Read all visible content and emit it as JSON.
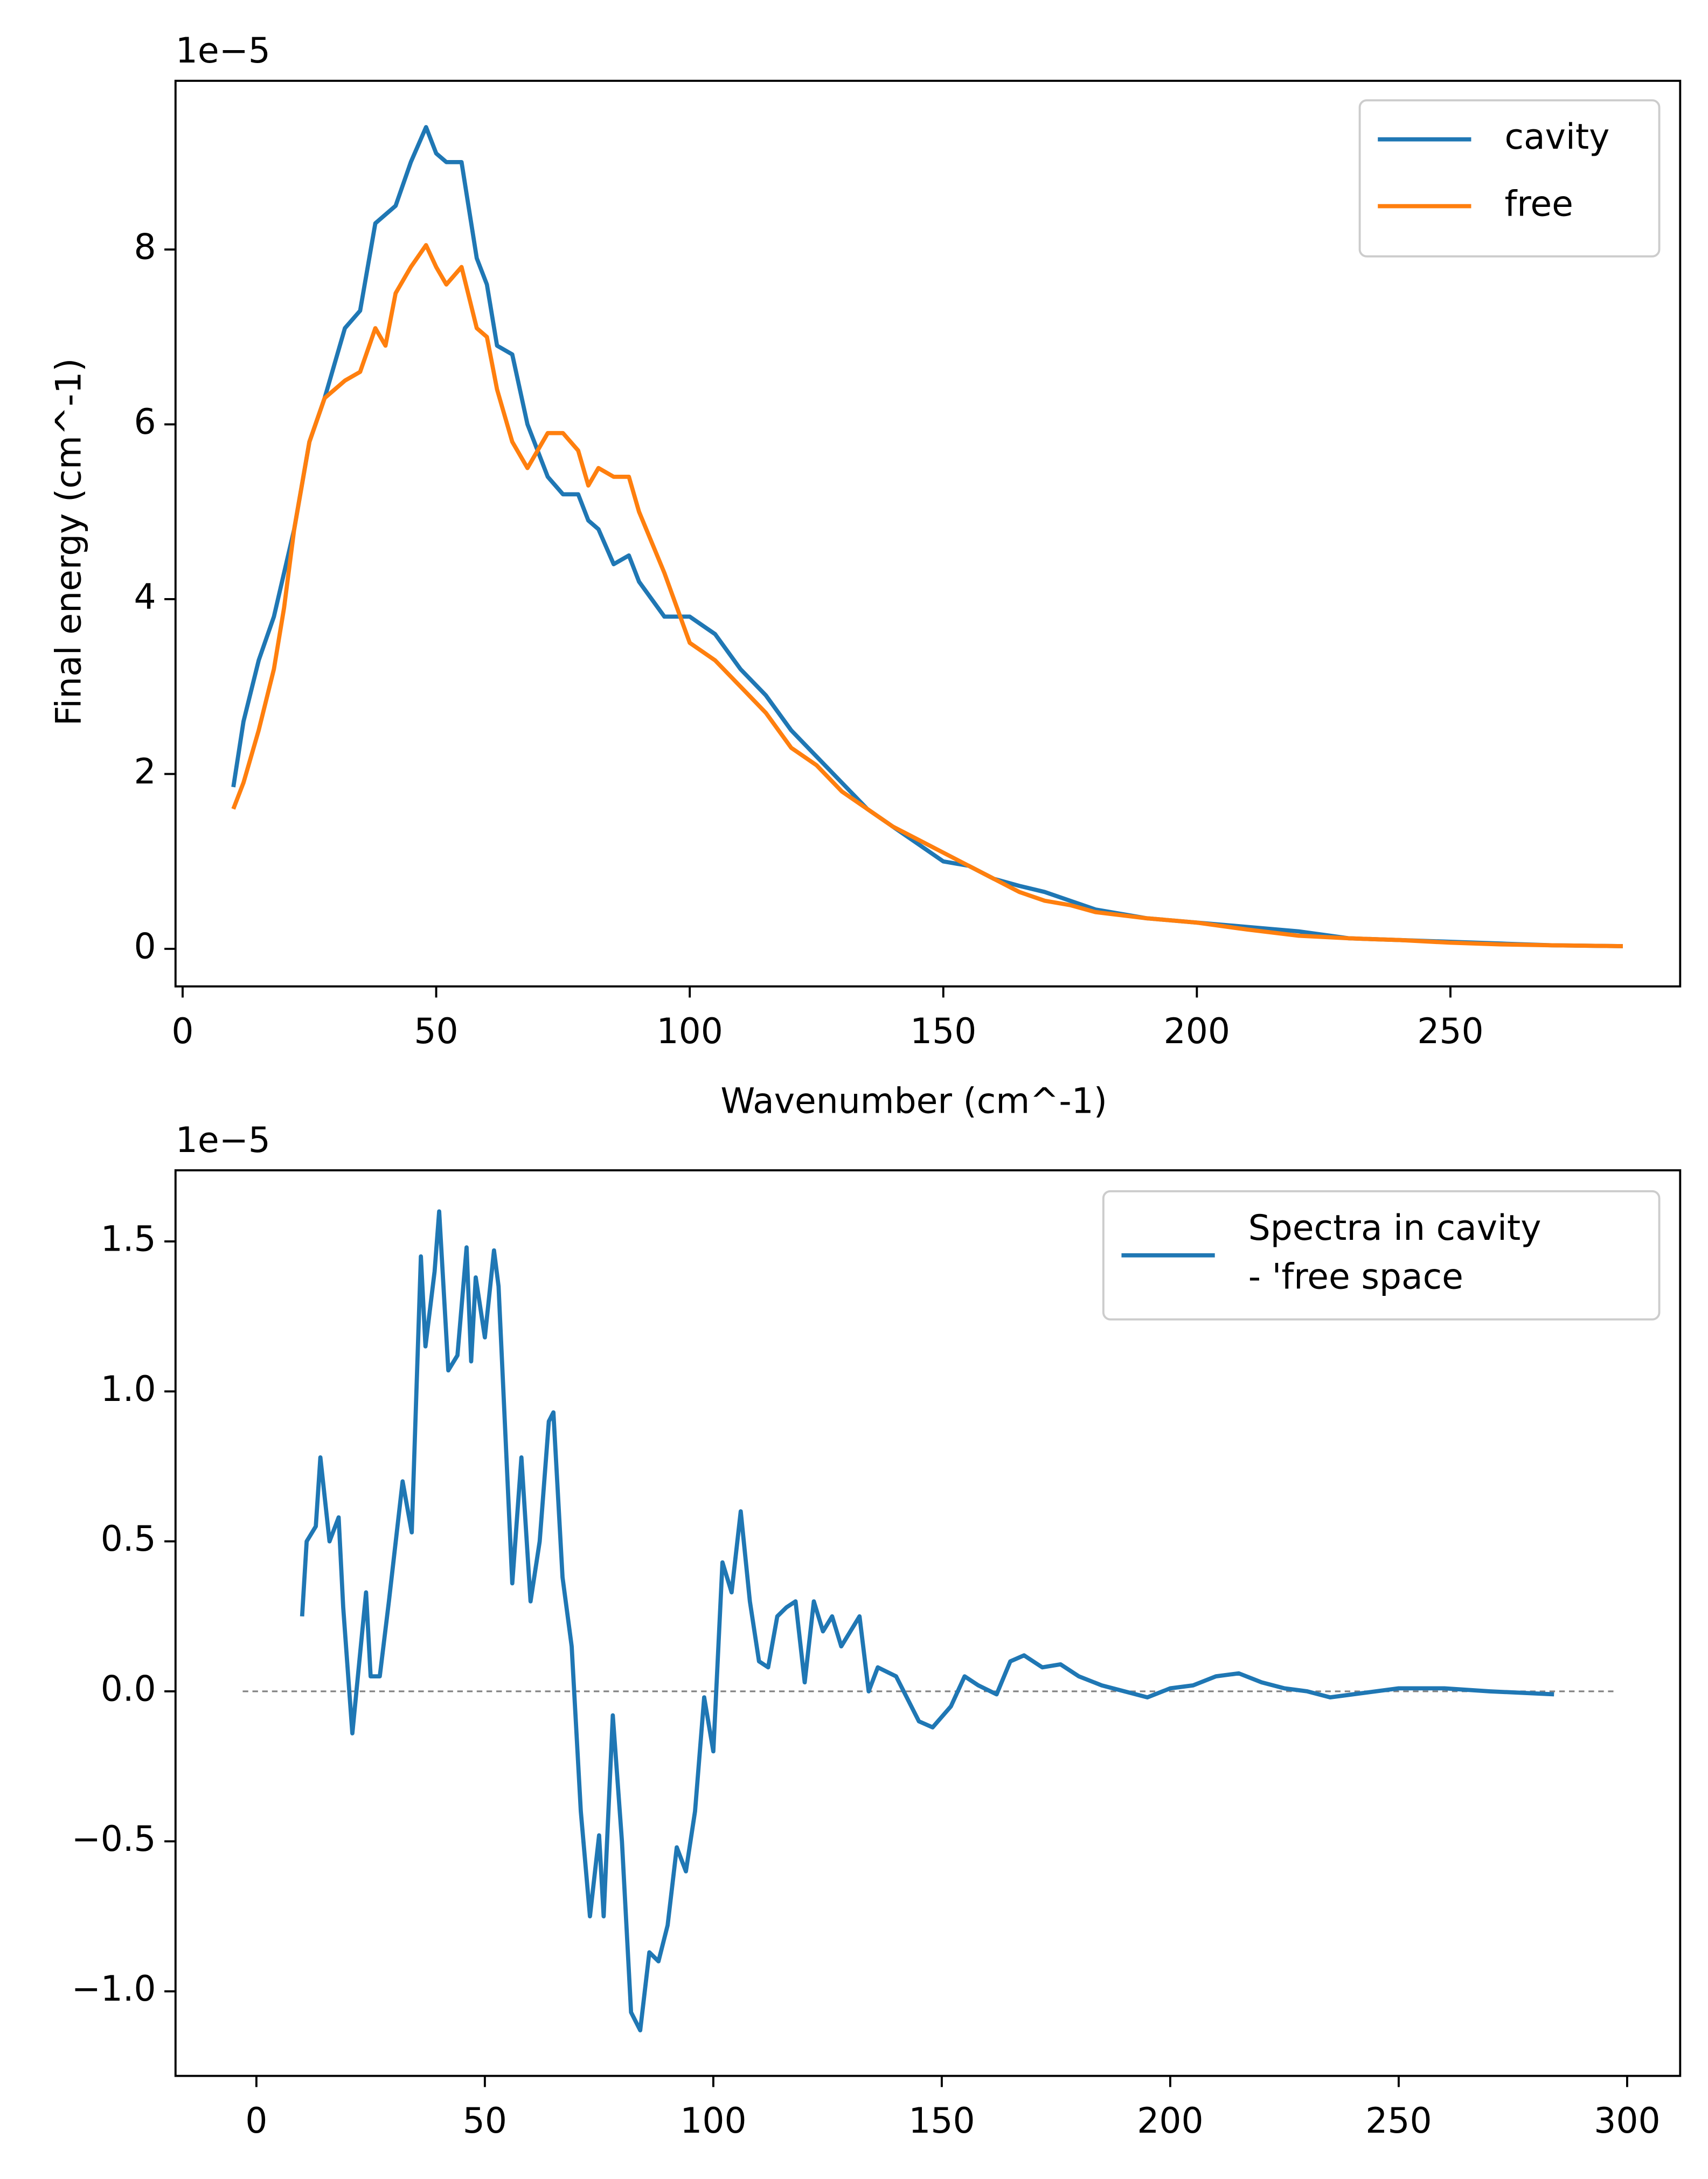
{
  "chart_data": [
    {
      "type": "line",
      "offset_label": "1e−5",
      "xlabel": "Wavenumber (cm^-1)",
      "ylabel": "Final energy (cm^-1)",
      "x": [
        10,
        12,
        15,
        18,
        20,
        22,
        25,
        28,
        30,
        32,
        35,
        38,
        40,
        42,
        45,
        48,
        50,
        52,
        55,
        58,
        60,
        62,
        65,
        68,
        70,
        72,
        75,
        78,
        80,
        82,
        85,
        88,
        90,
        95,
        100,
        105,
        110,
        115,
        120,
        125,
        130,
        135,
        140,
        145,
        150,
        155,
        160,
        165,
        170,
        175,
        180,
        190,
        200,
        210,
        220,
        230,
        240,
        250,
        260,
        270,
        284
      ],
      "series": [
        {
          "name": "cavity",
          "color": "#1f77b4",
          "values": [
            1.85,
            2.6,
            3.3,
            3.8,
            4.3,
            4.8,
            5.8,
            6.3,
            6.7,
            7.1,
            7.3,
            8.3,
            8.4,
            8.5,
            9.0,
            9.4,
            9.1,
            9.0,
            9.0,
            7.9,
            7.6,
            6.9,
            6.8,
            6.0,
            5.7,
            5.4,
            5.2,
            5.2,
            4.9,
            4.8,
            4.4,
            4.5,
            4.2,
            3.8,
            3.8,
            3.6,
            3.2,
            2.9,
            2.5,
            2.2,
            1.9,
            1.6,
            1.4,
            1.2,
            1.0,
            0.95,
            0.8,
            0.72,
            0.65,
            0.55,
            0.45,
            0.35,
            0.3,
            0.25,
            0.2,
            0.12,
            0.1,
            0.08,
            0.06,
            0.04,
            0.03
          ]
        },
        {
          "name": "free",
          "color": "#ff7f0e",
          "values": [
            1.6,
            1.9,
            2.5,
            3.2,
            3.9,
            4.8,
            5.8,
            6.3,
            6.4,
            6.5,
            6.6,
            7.1,
            6.9,
            7.5,
            7.8,
            8.05,
            7.8,
            7.6,
            7.8,
            7.1,
            7.0,
            6.4,
            5.8,
            5.5,
            5.7,
            5.9,
            5.9,
            5.7,
            5.3,
            5.5,
            5.4,
            5.4,
            5.0,
            4.3,
            3.5,
            3.3,
            3.0,
            2.7,
            2.3,
            2.1,
            1.8,
            1.6,
            1.4,
            1.25,
            1.1,
            0.95,
            0.8,
            0.65,
            0.55,
            0.5,
            0.42,
            0.35,
            0.3,
            0.22,
            0.15,
            0.12,
            0.1,
            0.07,
            0.05,
            0.04,
            0.03
          ]
        }
      ],
      "xlim": [
        -1.4,
        295.3
      ],
      "ylim": [
        -0.43,
        9.93
      ],
      "xticks": [
        0,
        50,
        100,
        150,
        200,
        250
      ],
      "yticks": [
        0,
        2,
        4,
        6,
        8
      ],
      "legend": "upper right"
    },
    {
      "type": "line",
      "offset_label": "1e−5",
      "x": [
        10,
        11,
        13,
        14,
        16,
        18,
        19,
        21,
        24,
        25,
        27,
        29,
        32,
        34,
        36,
        37,
        39,
        40,
        42,
        44,
        46,
        47,
        48,
        50,
        52,
        53,
        56,
        58,
        60,
        62,
        64,
        65,
        67,
        69,
        71,
        73,
        75,
        76,
        78,
        80,
        82,
        84,
        86,
        88,
        90,
        92,
        94,
        96,
        98,
        100,
        102,
        104,
        106,
        108,
        110,
        112,
        114,
        116,
        118,
        120,
        122,
        124,
        126,
        128,
        130,
        132,
        134,
        136,
        140,
        145,
        148,
        152,
        155,
        158,
        162,
        165,
        168,
        172,
        176,
        180,
        185,
        190,
        195,
        200,
        205,
        210,
        215,
        220,
        225,
        230,
        235,
        240,
        245,
        250,
        255,
        260,
        270,
        284
      ],
      "series": [
        {
          "name": "Spectra in cavity\n- 'free space",
          "color": "#1f77b4",
          "values": [
            0.25,
            0.5,
            0.55,
            0.78,
            0.5,
            0.58,
            0.28,
            -0.14,
            0.33,
            0.05,
            0.05,
            0.3,
            0.7,
            0.53,
            1.45,
            1.15,
            1.4,
            1.6,
            1.07,
            1.12,
            1.48,
            1.1,
            1.38,
            1.18,
            1.47,
            1.35,
            0.36,
            0.78,
            0.3,
            0.5,
            0.9,
            0.93,
            0.38,
            0.15,
            -0.4,
            -0.75,
            -0.48,
            -0.75,
            -0.08,
            -0.5,
            -1.07,
            -1.13,
            -0.87,
            -0.9,
            -0.78,
            -0.52,
            -0.6,
            -0.4,
            -0.02,
            -0.2,
            0.43,
            0.33,
            0.6,
            0.3,
            0.1,
            0.08,
            0.25,
            0.28,
            0.3,
            0.03,
            0.3,
            0.2,
            0.25,
            0.15,
            0.2,
            0.25,
            0.0,
            0.08,
            0.05,
            -0.1,
            -0.12,
            -0.05,
            0.05,
            0.02,
            -0.01,
            0.1,
            0.12,
            0.08,
            0.09,
            0.05,
            0.02,
            0.0,
            -0.02,
            0.01,
            0.02,
            0.05,
            0.06,
            0.03,
            0.01,
            0.0,
            -0.02,
            -0.01,
            0.0,
            0.01,
            0.01,
            0.01,
            0.0,
            -0.01
          ]
        }
      ],
      "reference_line": {
        "y": 0,
        "x": [
          -3,
          297
        ],
        "color": "#808080"
      },
      "xlim": [
        -17.7,
        311.6
      ],
      "ylim": [
        -1.282,
        1.737
      ],
      "xticks": [
        0,
        50,
        100,
        150,
        200,
        250,
        300
      ],
      "yticks": [
        {
          "value": -1.0,
          "label": "−1.0"
        },
        {
          "value": -0.5,
          "label": "−0.5"
        },
        {
          "value": 0,
          "label": "0.0"
        },
        {
          "value": 0.5,
          "label": "0.5"
        },
        {
          "value": 1.0,
          "label": "1.0"
        },
        {
          "value": 1.5,
          "label": "1.5"
        }
      ],
      "legend": "upper right"
    }
  ]
}
